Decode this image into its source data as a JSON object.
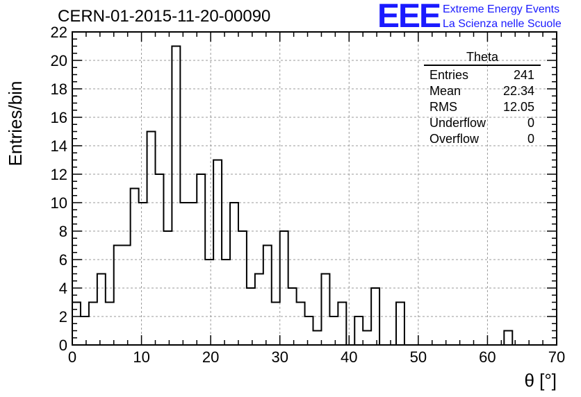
{
  "header": {
    "run_title": "CERN-01-2015-11-20-00090",
    "logo_text": "EEE",
    "logo_line1": "Extreme Energy Events",
    "logo_line2": "La Scienza nelle Scuole"
  },
  "stats": {
    "title": "Theta",
    "rows": [
      {
        "label": "Entries",
        "value": "241"
      },
      {
        "label": "Mean",
        "value": "22.34"
      },
      {
        "label": "RMS",
        "value": "12.05"
      },
      {
        "label": "Underflow",
        "value": "0"
      },
      {
        "label": "Overflow",
        "value": "0"
      }
    ]
  },
  "colors": {
    "line": "#000000",
    "grid": "#9a9a9a",
    "logo": "#1a1aff"
  },
  "chart_data": {
    "type": "bar",
    "histogram": "step",
    "title": "CERN-01-2015-11-20-00090",
    "xlabel": "θ [°]",
    "ylabel": "Entries/bin",
    "xlim": [
      0,
      70
    ],
    "ylim": [
      0,
      22
    ],
    "bin_width": 1.2,
    "bin_edges_start": 0,
    "x_ticks": [
      0,
      10,
      20,
      30,
      40,
      50,
      60,
      70
    ],
    "y_ticks": [
      0,
      2,
      4,
      6,
      8,
      10,
      12,
      14,
      16,
      18,
      20,
      22
    ],
    "grid": true,
    "legend": "top-right stats box",
    "values": [
      3,
      2,
      3,
      5,
      3,
      7,
      7,
      11,
      10,
      15,
      12,
      8,
      21,
      10,
      10,
      12,
      6,
      13,
      6,
      10,
      8,
      4,
      5,
      7,
      3,
      8,
      4,
      3,
      2,
      1,
      5,
      2,
      3,
      0,
      2,
      1,
      4,
      0,
      0,
      3,
      0,
      0,
      0,
      0,
      0,
      0,
      0,
      0,
      0,
      0,
      0,
      0,
      1,
      0,
      0,
      0,
      0,
      0
    ]
  }
}
